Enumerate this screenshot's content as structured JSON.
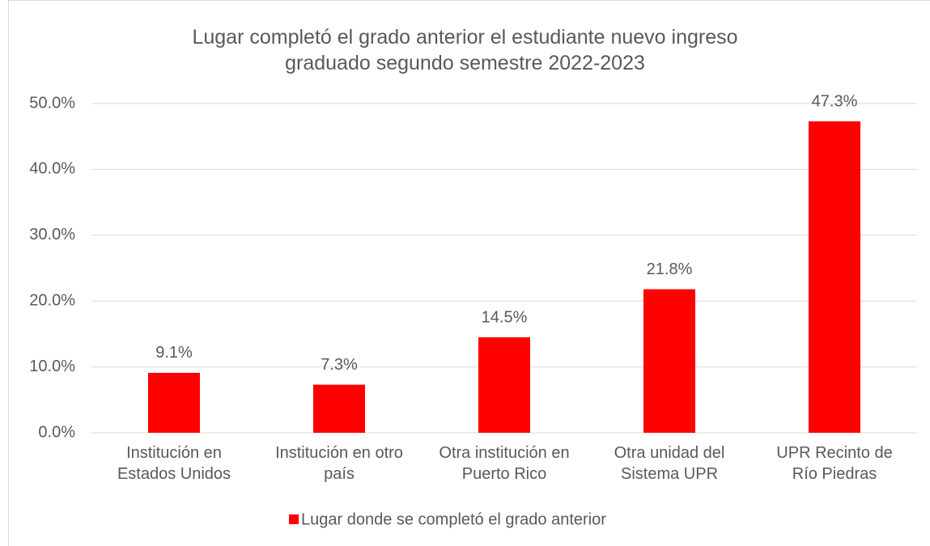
{
  "chart_data": {
    "type": "bar",
    "title": "Lugar completó el grado anterior el estudiante nuevo ingreso\ngraduado segundo semestre 2022-2023",
    "categories": [
      "Institución en\nEstados Unidos",
      "Institución en otro\npaís",
      "Otra institución en\nPuerto Rico",
      "Otra unidad del\nSistema UPR",
      "UPR Recinto de\nRío Piedras"
    ],
    "series": [
      {
        "name": "Lugar donde se completó el grado anterior",
        "color": "#ff0000",
        "values": [
          9.1,
          7.3,
          14.5,
          21.8,
          47.3
        ],
        "value_labels": [
          "9.1%",
          "7.3%",
          "14.5%",
          "21.8%",
          "47.3%"
        ]
      }
    ],
    "ylim": [
      0,
      50
    ],
    "yticks": [
      {
        "value": 0,
        "label": "0.0%"
      },
      {
        "value": 10,
        "label": "10.0%"
      },
      {
        "value": 20,
        "label": "20.0%"
      },
      {
        "value": 30,
        "label": "30.0%"
      },
      {
        "value": 40,
        "label": "40.0%"
      },
      {
        "value": 50,
        "label": "50.0%"
      }
    ],
    "grid": true,
    "legend": "bottom"
  }
}
